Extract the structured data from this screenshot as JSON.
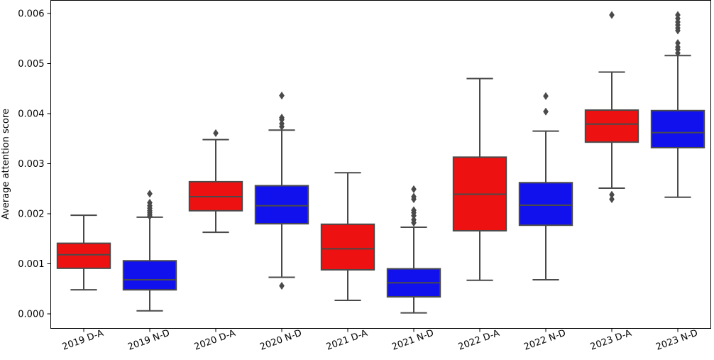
{
  "chart_data": {
    "type": "box",
    "ylabel": "Average attention score",
    "xlabel": "",
    "ylim": [
      -0.0003,
      0.0063
    ],
    "yticks": [
      0.0,
      0.001,
      0.002,
      0.003,
      0.004,
      0.005,
      0.006
    ],
    "ytick_labels": [
      "0.000",
      "0.001",
      "0.002",
      "0.003",
      "0.004",
      "0.005",
      "0.006"
    ],
    "edge_color": "#4a4a4a",
    "categories": [
      "2019 D-A",
      "2019 N-D",
      "2020 D-A",
      "2020 N-D",
      "2021 D-A",
      "2021 N-D",
      "2022 D-A",
      "2022 N-D",
      "2023 D-A",
      "2023 N-D"
    ],
    "boxes": [
      {
        "label": "2019 D-A",
        "color": "#ee1111",
        "whisker_low": 0.00048,
        "q1": 0.00091,
        "median": 0.00118,
        "q3": 0.00141,
        "whisker_high": 0.00197,
        "outliers": []
      },
      {
        "label": "2019 N-D",
        "color": "#1111ee",
        "whisker_low": 6e-05,
        "q1": 0.00048,
        "median": 0.00068,
        "q3": 0.00106,
        "whisker_high": 0.00193,
        "outliers": [
          0.00195,
          0.00198,
          0.00202,
          0.00206,
          0.00211,
          0.00216,
          0.00222,
          0.0024
        ]
      },
      {
        "label": "2020 D-A",
        "color": "#ee1111",
        "whisker_low": 0.00163,
        "q1": 0.00206,
        "median": 0.00234,
        "q3": 0.00264,
        "whisker_high": 0.00348,
        "outliers": [
          0.00361
        ]
      },
      {
        "label": "2020 N-D",
        "color": "#1111ee",
        "whisker_low": 0.00073,
        "q1": 0.0018,
        "median": 0.00216,
        "q3": 0.00256,
        "whisker_high": 0.00367,
        "outliers": [
          0.00056,
          0.00374,
          0.0038,
          0.00388,
          0.00392,
          0.00436
        ]
      },
      {
        "label": "2021 D-A",
        "color": "#ee1111",
        "whisker_low": 0.00027,
        "q1": 0.00088,
        "median": 0.0013,
        "q3": 0.00179,
        "whisker_high": 0.00282,
        "outliers": []
      },
      {
        "label": "2021 N-D",
        "color": "#1111ee",
        "whisker_low": 2e-05,
        "q1": 0.00034,
        "median": 0.00062,
        "q3": 0.0009,
        "whisker_high": 0.00173,
        "outliers": [
          0.00182,
          0.00188,
          0.00196,
          0.00202,
          0.00207,
          0.00229,
          0.00234,
          0.00249
        ]
      },
      {
        "label": "2022 D-A",
        "color": "#ee1111",
        "whisker_low": 0.00067,
        "q1": 0.00166,
        "median": 0.00239,
        "q3": 0.00313,
        "whisker_high": 0.0047,
        "outliers": []
      },
      {
        "label": "2022 N-D",
        "color": "#1111ee",
        "whisker_low": 0.00068,
        "q1": 0.00177,
        "median": 0.00217,
        "q3": 0.00262,
        "whisker_high": 0.00365,
        "outliers": [
          0.00404,
          0.00435
        ]
      },
      {
        "label": "2023 D-A",
        "color": "#ee1111",
        "whisker_low": 0.00251,
        "q1": 0.00343,
        "median": 0.00379,
        "q3": 0.00407,
        "whisker_high": 0.00483,
        "outliers": [
          0.00229,
          0.00238,
          0.00597
        ]
      },
      {
        "label": "2023 N-D",
        "color": "#1111ee",
        "whisker_low": 0.00233,
        "q1": 0.00332,
        "median": 0.00362,
        "q3": 0.00406,
        "whisker_high": 0.00516,
        "outliers": [
          0.00521,
          0.00528,
          0.00533,
          0.00541,
          0.00566,
          0.00571,
          0.00577,
          0.00583,
          0.0059,
          0.00597
        ]
      }
    ]
  }
}
